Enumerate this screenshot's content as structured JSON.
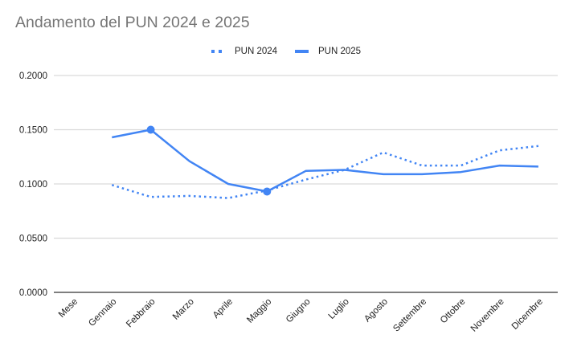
{
  "chart_data": {
    "type": "line",
    "title": "Andamento del PUN 2024 e 2025",
    "xlabel": "",
    "ylabel": "",
    "categories": [
      "Mese",
      "Gennaio",
      "Febbraio",
      "Marzo",
      "Aprile",
      "Maggio",
      "Giugno",
      "Luglio",
      "Agosto",
      "Settembre",
      "Ottobre",
      "Novembre",
      "Dicembre"
    ],
    "series": [
      {
        "name": "PUN 2024",
        "style": "dotted",
        "color": "#4285f4",
        "values": [
          null,
          0.099,
          0.088,
          0.089,
          0.087,
          0.094,
          0.104,
          0.113,
          0.129,
          0.117,
          0.117,
          0.131,
          0.135
        ]
      },
      {
        "name": "PUN 2025",
        "style": "solid",
        "color": "#4285f4",
        "values": [
          null,
          0.143,
          0.15,
          0.121,
          0.1,
          0.093,
          0.112,
          0.113,
          0.109,
          0.109,
          0.111,
          0.117,
          0.116
        ],
        "highlighted_points": [
          "Febbraio",
          "Maggio"
        ]
      }
    ],
    "ylim": [
      0,
      0.2
    ],
    "yticks": [
      "0.0000",
      "0.0500",
      "0.1000",
      "0.1500",
      "0.2000"
    ],
    "ytick_values": [
      0,
      0.05,
      0.1,
      0.15,
      0.2
    ],
    "grid": true,
    "legend_position": "top"
  },
  "legend": {
    "items": [
      {
        "label": "PUN 2024",
        "style": "dotted"
      },
      {
        "label": "PUN 2025",
        "style": "solid"
      }
    ]
  }
}
